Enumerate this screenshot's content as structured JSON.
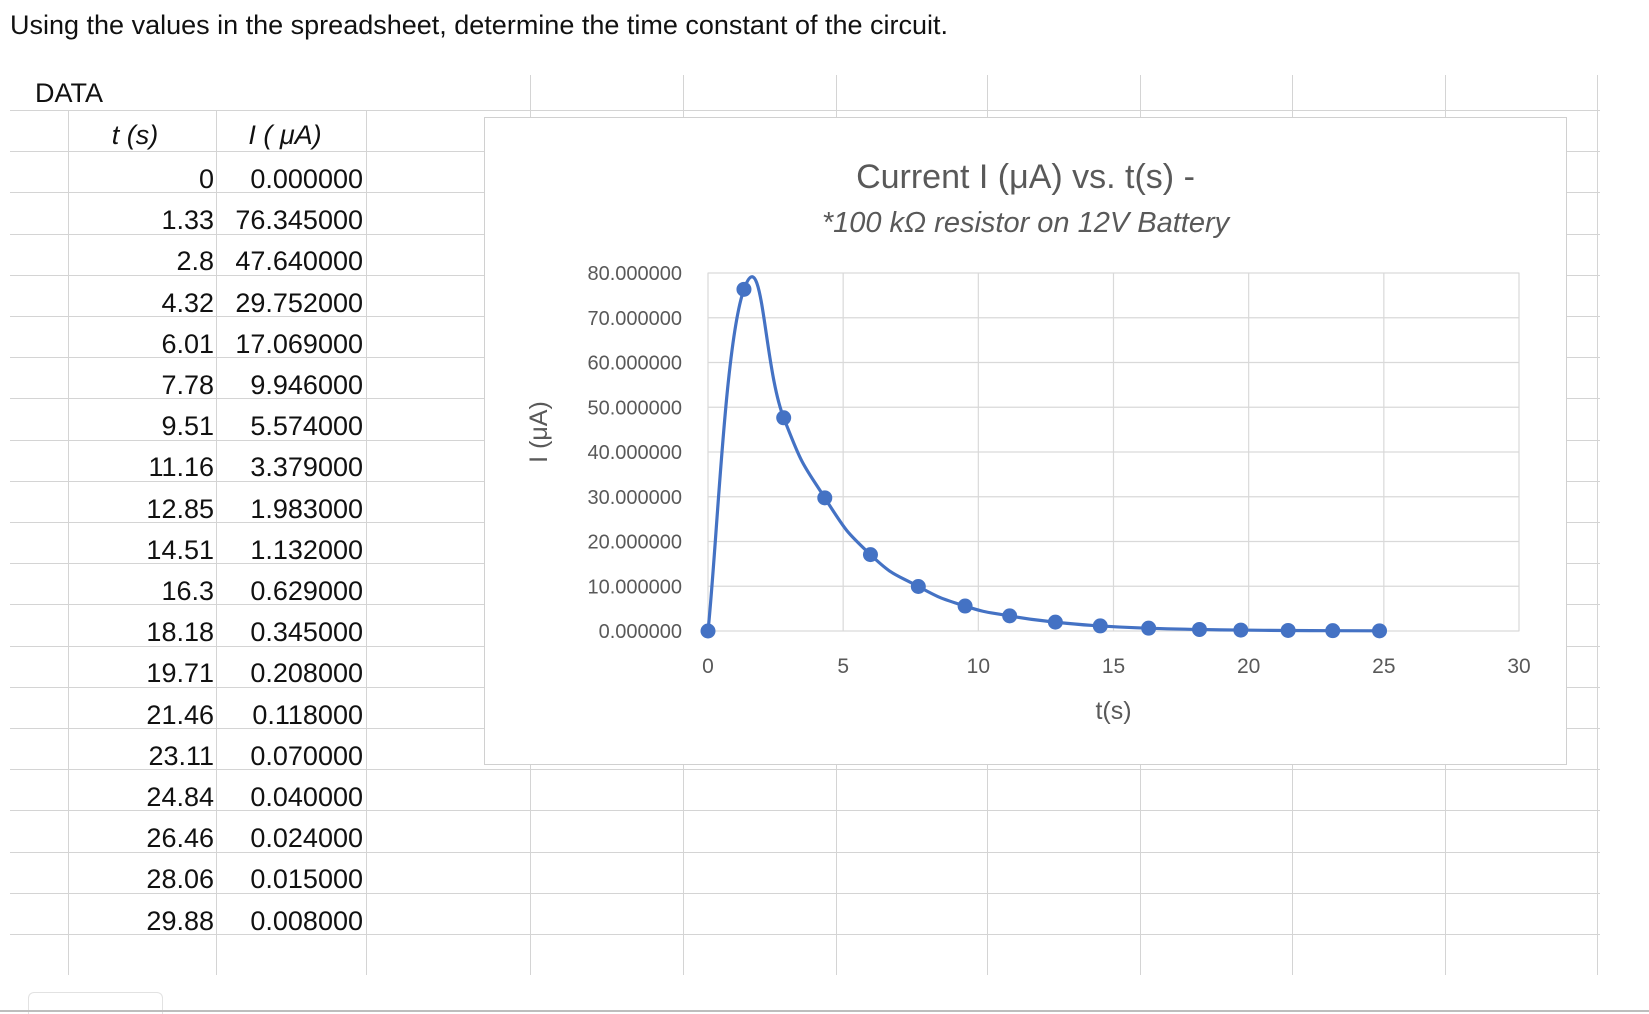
{
  "question": "Using the values in the spreadsheet, determine the time constant of the circuit.",
  "sheet": {
    "data_label": "DATA",
    "col_t": "t (s)",
    "col_i": "I ( μA)",
    "rows": [
      {
        "t": "0",
        "i": "0.000000"
      },
      {
        "t": "1.33",
        "i": "76.345000"
      },
      {
        "t": "2.8",
        "i": "47.640000"
      },
      {
        "t": "4.32",
        "i": "29.752000"
      },
      {
        "t": "6.01",
        "i": "17.069000"
      },
      {
        "t": "7.78",
        "i": "9.946000"
      },
      {
        "t": "9.51",
        "i": "5.574000"
      },
      {
        "t": "11.16",
        "i": "3.379000"
      },
      {
        "t": "12.85",
        "i": "1.983000"
      },
      {
        "t": "14.51",
        "i": "1.132000"
      },
      {
        "t": "16.3",
        "i": "0.629000"
      },
      {
        "t": "18.18",
        "i": "0.345000"
      },
      {
        "t": "19.71",
        "i": "0.208000"
      },
      {
        "t": "21.46",
        "i": "0.118000"
      },
      {
        "t": "23.11",
        "i": "0.070000"
      },
      {
        "t": "24.84",
        "i": "0.040000"
      },
      {
        "t": "26.46",
        "i": "0.024000"
      },
      {
        "t": "28.06",
        "i": "0.015000"
      },
      {
        "t": "29.88",
        "i": "0.008000"
      }
    ]
  },
  "chart_data": {
    "type": "scatter",
    "title": "Current I (μA) vs. t(s) -",
    "subtitle": "*100 kΩ resistor on 12V Battery",
    "xlabel": "t(s)",
    "ylabel": "I (μA)",
    "xlim": [
      0,
      30
    ],
    "ylim": [
      0,
      80
    ],
    "x_ticks": [
      0,
      5,
      10,
      15,
      20,
      25,
      30
    ],
    "y_ticks": [
      0,
      10,
      20,
      30,
      40,
      50,
      60,
      70,
      80
    ],
    "y_tick_labels": [
      "0.000000",
      "10.000000",
      "20.000000",
      "30.000000",
      "40.000000",
      "50.000000",
      "60.000000",
      "70.000000",
      "80.000000"
    ],
    "grid": true,
    "smooth_line": true,
    "series": [
      {
        "color": "#4472C4",
        "x": [
          0,
          1.33,
          2.8,
          4.32,
          6.01,
          7.78,
          9.51,
          11.16,
          12.85,
          14.51,
          16.3,
          18.18,
          19.71,
          21.46,
          23.11,
          24.84
        ],
        "y": [
          0,
          76.345,
          47.64,
          29.752,
          17.069,
          9.946,
          5.574,
          3.379,
          1.983,
          1.132,
          0.629,
          0.345,
          0.208,
          0.118,
          0.07,
          0.04
        ]
      }
    ]
  }
}
